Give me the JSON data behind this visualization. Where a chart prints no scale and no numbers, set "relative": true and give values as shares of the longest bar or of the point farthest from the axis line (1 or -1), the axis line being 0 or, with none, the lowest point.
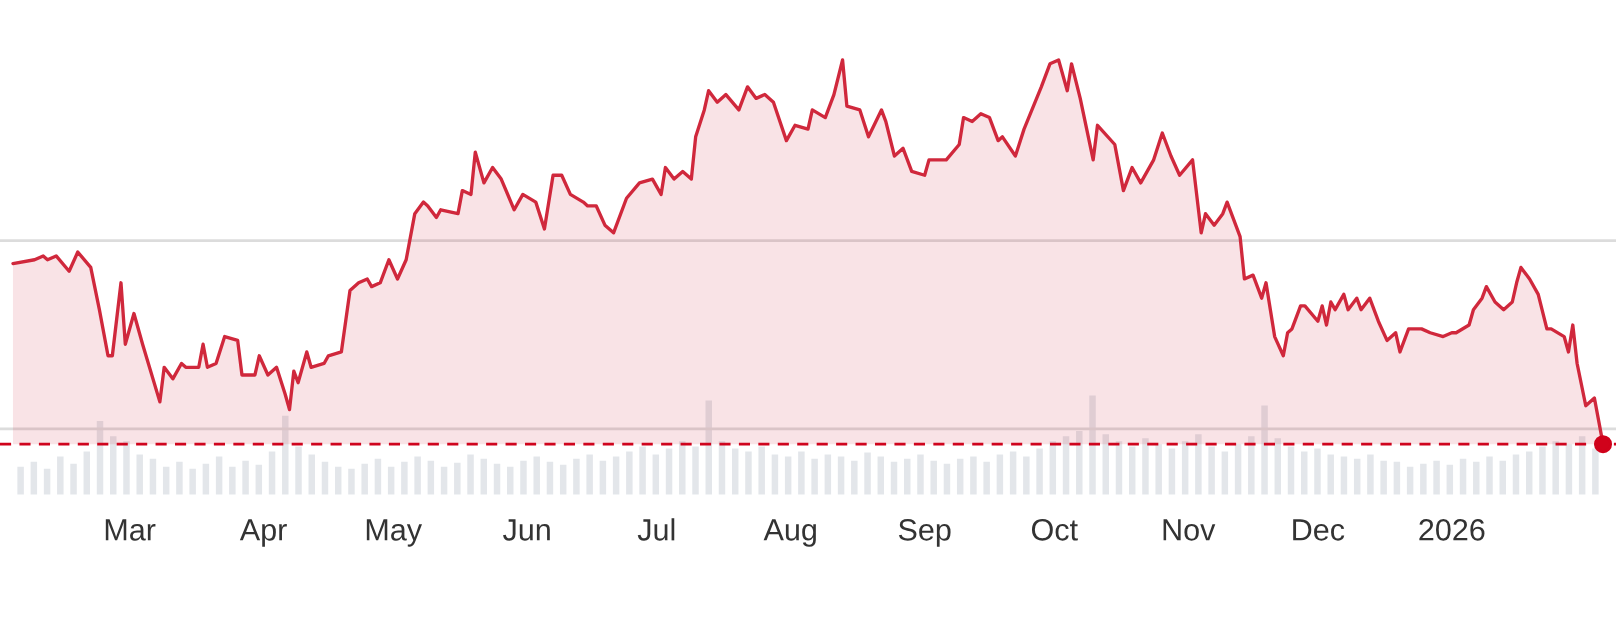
{
  "chart_data": [
    {
      "type": "area",
      "relative": true,
      "grid": false,
      "tick_labels": "x",
      "xlim": [
        "2025-01-30",
        "2026-02-08"
      ],
      "xticks": [
        {
          "value": "2025-03-01",
          "label": "Mar"
        },
        {
          "value": "2025-04-01",
          "label": "Apr"
        },
        {
          "value": "2025-05-01",
          "label": "May"
        },
        {
          "value": "2025-06-01",
          "label": "Jun"
        },
        {
          "value": "2025-07-01",
          "label": "Jul"
        },
        {
          "value": "2025-08-01",
          "label": "Aug"
        },
        {
          "value": "2025-09-01",
          "label": "Sep"
        },
        {
          "value": "2025-10-01",
          "label": "Oct"
        },
        {
          "value": "2025-11-01",
          "label": "Nov"
        },
        {
          "value": "2025-12-01",
          "label": "Dec"
        },
        {
          "value": "2026-01-01",
          "label": "2026"
        }
      ],
      "ref_lines": [
        {
          "axis": "y",
          "value": 0.53,
          "color": "#dcdcdc",
          "line_style": "solid"
        },
        {
          "axis": "y",
          "value": 0.04,
          "color": "#dcdcdc",
          "line_style": "solid"
        },
        {
          "axis": "y",
          "value": 0,
          "color": "#d0021b",
          "line_style": "dashed"
        }
      ],
      "series": [
        {
          "type": "area",
          "color": "#d0283c",
          "x": [
            "2025-02-02",
            "2025-02-07",
            "2025-02-09",
            "2025-02-10",
            "2025-02-12",
            "2025-02-15",
            "2025-02-17",
            "2025-02-20",
            "2025-02-22",
            "2025-02-24",
            "2025-02-25",
            "2025-02-27",
            "2025-02-28",
            "2025-03-02",
            "2025-03-04",
            "2025-03-08",
            "2025-03-09",
            "2025-03-11",
            "2025-03-13",
            "2025-03-14",
            "2025-03-17",
            "2025-03-18",
            "2025-03-19",
            "2025-03-21",
            "2025-03-23",
            "2025-03-26",
            "2025-03-27",
            "2025-03-30",
            "2025-03-31",
            "2025-04-02",
            "2025-04-04",
            "2025-04-06",
            "2025-04-07",
            "2025-04-08",
            "2025-04-09",
            "2025-04-11",
            "2025-04-12",
            "2025-04-15",
            "2025-04-16",
            "2025-04-19",
            "2025-04-21",
            "2025-04-23",
            "2025-04-25",
            "2025-04-26",
            "2025-04-28",
            "2025-04-30",
            "2025-05-02",
            "2025-05-04",
            "2025-05-06",
            "2025-05-08",
            "2025-05-09",
            "2025-05-11",
            "2025-05-12",
            "2025-05-16",
            "2025-05-17",
            "2025-05-19",
            "2025-05-20",
            "2025-05-22",
            "2025-05-24",
            "2025-05-26",
            "2025-05-29",
            "2025-05-31",
            "2025-06-03",
            "2025-06-05",
            "2025-06-07",
            "2025-06-09",
            "2025-06-11",
            "2025-06-14",
            "2025-06-15",
            "2025-06-17",
            "2025-06-19",
            "2025-06-21",
            "2025-06-24",
            "2025-06-27",
            "2025-06-30",
            "2025-07-02",
            "2025-07-03",
            "2025-07-05",
            "2025-07-07",
            "2025-07-09",
            "2025-07-10",
            "2025-07-12",
            "2025-07-13",
            "2025-07-15",
            "2025-07-17",
            "2025-07-20",
            "2025-07-22",
            "2025-07-24",
            "2025-07-26",
            "2025-07-28",
            "2025-07-31",
            "2025-08-02",
            "2025-08-05",
            "2025-08-06",
            "2025-08-09",
            "2025-08-11",
            "2025-08-13",
            "2025-08-14",
            "2025-08-17",
            "2025-08-19",
            "2025-08-22",
            "2025-08-23",
            "2025-08-25",
            "2025-08-27",
            "2025-08-29",
            "2025-09-01",
            "2025-09-02",
            "2025-09-06",
            "2025-09-09",
            "2025-09-10",
            "2025-09-12",
            "2025-09-14",
            "2025-09-16",
            "2025-09-18",
            "2025-09-19",
            "2025-09-22",
            "2025-09-24",
            "2025-09-28",
            "2025-09-30",
            "2025-10-02",
            "2025-10-04",
            "2025-10-05",
            "2025-10-07",
            "2025-10-10",
            "2025-10-11",
            "2025-10-15",
            "2025-10-17",
            "2025-10-19",
            "2025-10-21",
            "2025-10-24",
            "2025-10-26",
            "2025-10-28",
            "2025-10-30",
            "2025-11-02",
            "2025-11-04",
            "2025-11-05",
            "2025-11-07",
            "2025-11-09",
            "2025-11-10",
            "2025-11-13",
            "2025-11-14",
            "2025-11-16",
            "2025-11-18",
            "2025-11-19",
            "2025-11-21",
            "2025-11-23",
            "2025-11-24",
            "2025-11-25",
            "2025-11-27",
            "2025-11-28",
            "2025-12-01",
            "2025-12-02",
            "2025-12-03",
            "2025-12-04",
            "2025-12-05",
            "2025-12-07",
            "2025-12-08",
            "2025-12-10",
            "2025-12-11",
            "2025-12-13",
            "2025-12-15",
            "2025-12-17",
            "2025-12-19",
            "2025-12-20",
            "2025-12-22",
            "2025-12-25",
            "2025-12-27",
            "2025-12-30",
            "2026-01-01",
            "2026-01-02",
            "2026-01-05",
            "2026-01-06",
            "2026-01-08",
            "2026-01-09",
            "2026-01-11",
            "2026-01-13",
            "2026-01-15",
            "2026-01-16",
            "2026-01-17",
            "2026-01-19",
            "2026-01-21",
            "2026-01-23",
            "2026-01-24",
            "2026-01-27",
            "2026-01-28",
            "2026-01-29",
            "2026-01-30",
            "2026-02-01",
            "2026-02-03",
            "2026-02-05"
          ],
          "values": [
            0.47,
            0.48,
            0.49,
            0.48,
            0.49,
            0.45,
            0.5,
            0.46,
            0.35,
            0.23,
            0.23,
            0.42,
            0.26,
            0.34,
            0.26,
            0.11,
            0.2,
            0.17,
            0.21,
            0.2,
            0.2,
            0.26,
            0.2,
            0.21,
            0.28,
            0.27,
            0.18,
            0.18,
            0.23,
            0.18,
            0.2,
            0.13,
            0.09,
            0.19,
            0.16,
            0.24,
            0.2,
            0.21,
            0.23,
            0.24,
            0.4,
            0.42,
            0.43,
            0.41,
            0.42,
            0.48,
            0.43,
            0.48,
            0.6,
            0.63,
            0.62,
            0.59,
            0.61,
            0.6,
            0.66,
            0.65,
            0.76,
            0.68,
            0.72,
            0.69,
            0.61,
            0.65,
            0.63,
            0.56,
            0.7,
            0.7,
            0.65,
            0.63,
            0.62,
            0.62,
            0.57,
            0.55,
            0.64,
            0.68,
            0.69,
            0.65,
            0.72,
            0.69,
            0.71,
            0.69,
            0.8,
            0.87,
            0.92,
            0.89,
            0.91,
            0.87,
            0.93,
            0.9,
            0.91,
            0.89,
            0.79,
            0.83,
            0.82,
            0.87,
            0.85,
            0.91,
            1.0,
            0.88,
            0.87,
            0.8,
            0.87,
            0.84,
            0.75,
            0.77,
            0.71,
            0.7,
            0.74,
            0.74,
            0.78,
            0.85,
            0.84,
            0.86,
            0.85,
            0.79,
            0.8,
            0.75,
            0.82,
            0.93,
            0.99,
            1.0,
            0.92,
            0.99,
            0.9,
            0.74,
            0.83,
            0.78,
            0.66,
            0.72,
            0.68,
            0.74,
            0.81,
            0.75,
            0.7,
            0.74,
            0.55,
            0.6,
            0.57,
            0.6,
            0.63,
            0.54,
            0.43,
            0.44,
            0.38,
            0.42,
            0.28,
            0.23,
            0.29,
            0.3,
            0.36,
            0.36,
            0.32,
            0.36,
            0.31,
            0.37,
            0.35,
            0.39,
            0.35,
            0.38,
            0.35,
            0.38,
            0.32,
            0.27,
            0.29,
            0.24,
            0.3,
            0.3,
            0.29,
            0.28,
            0.29,
            0.29,
            0.31,
            0.35,
            0.38,
            0.41,
            0.37,
            0.35,
            0.37,
            0.42,
            0.46,
            0.43,
            0.39,
            0.3,
            0.3,
            0.28,
            0.24,
            0.31,
            0.21,
            0.1,
            0.12,
            0
          ]
        },
        {
          "type": "scatter",
          "color": "#d0021b",
          "marker": "circle",
          "x": [
            "2026-02-05"
          ],
          "values": [
            0
          ]
        }
      ]
    },
    {
      "type": "bar",
      "relative": true,
      "tick_labels": false,
      "color": "#e3e6ea",
      "categories": [
        null,
        null,
        null,
        null,
        null,
        null,
        null,
        null,
        null,
        null,
        null,
        null,
        null,
        null,
        null,
        null,
        null,
        null,
        null,
        null,
        null,
        null,
        null,
        null,
        null,
        null,
        null,
        null,
        null,
        null,
        null,
        null,
        null,
        null,
        null,
        null,
        null,
        null,
        null,
        null,
        null,
        null,
        null,
        null,
        null,
        null,
        null,
        null,
        null,
        null,
        null,
        null,
        null,
        null,
        null,
        null,
        null,
        null,
        null,
        null,
        null,
        null,
        null,
        null,
        null,
        null,
        null,
        null,
        null,
        null,
        null,
        null,
        null,
        null,
        null,
        null,
        null,
        null,
        null,
        null,
        null,
        null,
        null,
        null,
        null,
        null,
        null,
        null,
        null,
        null,
        null,
        null,
        null,
        null,
        null,
        null,
        null,
        null,
        null,
        null,
        null,
        null,
        null,
        null,
        null,
        null,
        null,
        null,
        null,
        null,
        null,
        null,
        null,
        null,
        null,
        null,
        null,
        null,
        null,
        null
      ],
      "values": [
        0.3,
        0.35,
        0.28,
        0.4,
        0.33,
        0.45,
        0.75,
        0.6,
        0.55,
        0.42,
        0.38,
        0.3,
        0.35,
        0.28,
        0.33,
        0.4,
        0.3,
        0.36,
        0.32,
        0.45,
        0.8,
        0.5,
        0.42,
        0.35,
        0.3,
        0.28,
        0.33,
        0.38,
        0.3,
        0.35,
        0.4,
        0.36,
        0.3,
        0.34,
        0.42,
        0.38,
        0.33,
        0.3,
        0.36,
        0.4,
        0.35,
        0.32,
        0.38,
        0.42,
        0.36,
        0.4,
        0.45,
        0.5,
        0.42,
        0.48,
        0.55,
        0.5,
        0.95,
        0.55,
        0.48,
        0.45,
        0.5,
        0.42,
        0.4,
        0.45,
        0.38,
        0.42,
        0.4,
        0.36,
        0.44,
        0.4,
        0.35,
        0.38,
        0.42,
        0.36,
        0.33,
        0.38,
        0.4,
        0.35,
        0.42,
        0.45,
        0.4,
        0.48,
        0.55,
        0.6,
        0.65,
        1.0,
        0.62,
        0.55,
        0.5,
        0.58,
        0.52,
        0.48,
        0.55,
        0.62,
        0.5,
        0.45,
        0.52,
        0.6,
        0.9,
        0.58,
        0.5,
        0.45,
        0.48,
        0.42,
        0.4,
        0.38,
        0.42,
        0.36,
        0.35,
        0.3,
        0.33,
        0.36,
        0.32,
        0.38,
        0.35,
        0.4,
        0.36,
        0.42,
        0.45,
        0.5,
        0.55,
        0.52,
        0.6,
        0.48
      ]
    }
  ]
}
